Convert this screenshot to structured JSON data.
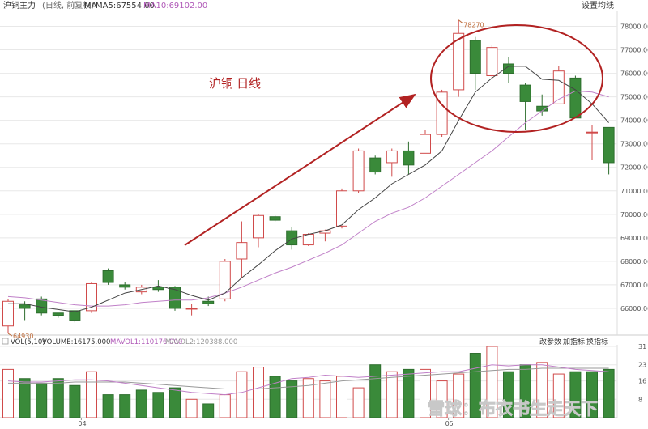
{
  "header": {
    "symbol": "沪铜主力",
    "period_info": "(日线, 前复权)",
    "ma_label": "MA",
    "ma5_label": "MA5:67554.00",
    "ma10_label": "MA10:69102.00",
    "settings_button": "设置均线"
  },
  "volume_header": {
    "vol_label": "VOL(5,10)",
    "volume_label": "VOLUME:16175.000",
    "mavol1_label": "MAVOL1:110176.000",
    "mavol2_label": "MAVOL2:120388.000",
    "buttons": [
      "改参数",
      "加指标",
      "换指标"
    ]
  },
  "annotation": {
    "text": "沪铜 日线"
  },
  "watermark": "雪球：布衣书生走天下",
  "colors": {
    "up": "#d04a4a",
    "down": "#3a8a3a",
    "ma5": "#444444",
    "ma10": "#c080c8",
    "annotation": "#b22222",
    "axis_text": "#555555",
    "grid": "#e8e8e8"
  },
  "chart_data": [
    {
      "type": "candlestick",
      "title": "沪铜 日线",
      "y_ticks": [
        66000,
        67000,
        68000,
        69000,
        70000,
        71000,
        72000,
        73000,
        74000,
        75000,
        76000,
        77000,
        78000
      ],
      "ylim": [
        65000,
        78500
      ],
      "annotations": [
        {
          "text": "78270",
          "index": 22
        },
        {
          "text": "64930",
          "index": 0
        }
      ],
      "candles": [
        {
          "o": 65250,
          "h": 66400,
          "l": 64930,
          "c": 66300
        },
        {
          "o": 66150,
          "h": 66300,
          "l": 65500,
          "c": 66000
        },
        {
          "o": 66400,
          "h": 66500,
          "l": 65700,
          "c": 65800
        },
        {
          "o": 65800,
          "h": 65800,
          "l": 65600,
          "c": 65700
        },
        {
          "o": 65900,
          "h": 65900,
          "l": 65400,
          "c": 65500
        },
        {
          "o": 65900,
          "h": 67100,
          "l": 65800,
          "c": 67050
        },
        {
          "o": 67600,
          "h": 67700,
          "l": 67000,
          "c": 67100
        },
        {
          "o": 67000,
          "h": 67100,
          "l": 66800,
          "c": 66900
        },
        {
          "o": 66700,
          "h": 67000,
          "l": 66600,
          "c": 66900
        },
        {
          "o": 66900,
          "h": 67200,
          "l": 66700,
          "c": 66800
        },
        {
          "o": 66900,
          "h": 66950,
          "l": 65900,
          "c": 66000
        },
        {
          "o": 66000,
          "h": 66200,
          "l": 65700,
          "c": 66000
        },
        {
          "o": 66300,
          "h": 66500,
          "l": 66100,
          "c": 66200
        },
        {
          "o": 66400,
          "h": 68100,
          "l": 66300,
          "c": 68000
        },
        {
          "o": 68100,
          "h": 69700,
          "l": 67300,
          "c": 68800
        },
        {
          "o": 69000,
          "h": 70000,
          "l": 68600,
          "c": 69950
        },
        {
          "o": 69900,
          "h": 69950,
          "l": 69700,
          "c": 69750
        },
        {
          "o": 69300,
          "h": 69450,
          "l": 68500,
          "c": 68700
        },
        {
          "o": 68700,
          "h": 69200,
          "l": 68650,
          "c": 69150
        },
        {
          "o": 69200,
          "h": 69350,
          "l": 68850,
          "c": 69300
        },
        {
          "o": 69500,
          "h": 71100,
          "l": 69400,
          "c": 71000
        },
        {
          "o": 71000,
          "h": 72800,
          "l": 70900,
          "c": 72700
        },
        {
          "o": 72400,
          "h": 72500,
          "l": 71700,
          "c": 71800
        },
        {
          "o": 72200,
          "h": 72800,
          "l": 71600,
          "c": 72700
        },
        {
          "o": 72700,
          "h": 73100,
          "l": 71700,
          "c": 72100
        },
        {
          "o": 72600,
          "h": 73600,
          "l": 72600,
          "c": 73400
        },
        {
          "o": 73400,
          "h": 75300,
          "l": 73300,
          "c": 75200
        },
        {
          "o": 75300,
          "h": 78270,
          "l": 75000,
          "c": 77700
        },
        {
          "o": 77400,
          "h": 77550,
          "l": 75300,
          "c": 76000
        },
        {
          "o": 75900,
          "h": 77200,
          "l": 75800,
          "c": 77100
        },
        {
          "o": 76400,
          "h": 76700,
          "l": 75600,
          "c": 76000
        },
        {
          "o": 75500,
          "h": 75600,
          "l": 73600,
          "c": 74800
        },
        {
          "o": 74600,
          "h": 75100,
          "l": 74200,
          "c": 74400
        },
        {
          "o": 74700,
          "h": 76300,
          "l": 74700,
          "c": 76100
        },
        {
          "o": 75800,
          "h": 75900,
          "l": 74100,
          "c": 74100
        },
        {
          "o": 73500,
          "h": 73800,
          "l": 72300,
          "c": 73500
        },
        {
          "o": 73700,
          "h": 73700,
          "l": 71700,
          "c": 72200
        }
      ],
      "ma5": [
        66200,
        66200,
        66050,
        65950,
        65850,
        66050,
        66350,
        66650,
        66800,
        66950,
        66800,
        66550,
        66350,
        66650,
        67300,
        67850,
        68450,
        68950,
        69150,
        69300,
        69550,
        70200,
        70700,
        71300,
        71700,
        72100,
        72700,
        74000,
        75200,
        75800,
        76300,
        76300,
        75750,
        75700,
        75300,
        74700,
        73900
      ],
      "ma10": [
        66500,
        66450,
        66350,
        66250,
        66150,
        66100,
        66100,
        66150,
        66250,
        66300,
        66350,
        66350,
        66450,
        66650,
        66900,
        67200,
        67500,
        67750,
        68050,
        68350,
        68700,
        69200,
        69700,
        70050,
        70300,
        70700,
        71200,
        71700,
        72200,
        72700,
        73300,
        73900,
        74400,
        74900,
        75250,
        75200,
        75000
      ]
    },
    {
      "type": "bar",
      "title": "VOL(5,10)",
      "y_ticks": [
        8,
        16,
        23,
        31
      ],
      "ylim": [
        0,
        31
      ],
      "values": [
        21,
        17,
        15,
        17,
        14,
        20,
        10,
        10,
        12,
        11,
        13,
        8,
        6,
        10,
        20,
        22,
        18,
        16,
        17,
        16,
        18,
        13,
        23,
        20,
        21,
        21,
        16,
        19,
        28,
        31,
        20,
        23,
        24,
        19,
        20,
        20,
        21
      ],
      "up": [
        true,
        false,
        false,
        false,
        false,
        true,
        false,
        false,
        false,
        false,
        false,
        true,
        false,
        true,
        true,
        true,
        false,
        false,
        true,
        true,
        true,
        true,
        false,
        true,
        false,
        true,
        true,
        true,
        false,
        true,
        false,
        false,
        true,
        true,
        false,
        false,
        false
      ],
      "mavol1": [
        16,
        15.5,
        15.5,
        16,
        16.5,
        16.5,
        16,
        15,
        14,
        13,
        12,
        11,
        10.5,
        10,
        11,
        13,
        15,
        17,
        17.5,
        18.5,
        18,
        17.5,
        18,
        18.5,
        19,
        19.5,
        20,
        20,
        21.5,
        23,
        22.5,
        23,
        23,
        22,
        21,
        20.5,
        20
      ],
      "mavol2": [
        15,
        15,
        15,
        15,
        15.5,
        15.5,
        15.5,
        15.5,
        15,
        14.5,
        14,
        13.5,
        13,
        12.5,
        12.5,
        12.5,
        13,
        13.5,
        14,
        15,
        16,
        16.5,
        17,
        17.5,
        18,
        18.5,
        19,
        19.5,
        20,
        20.5,
        21,
        21,
        21.5,
        21.5,
        21.5,
        21.5,
        21.5
      ]
    }
  ],
  "x_labels": [
    {
      "text": "04",
      "index": 4
    },
    {
      "text": "05",
      "index": 26
    }
  ]
}
